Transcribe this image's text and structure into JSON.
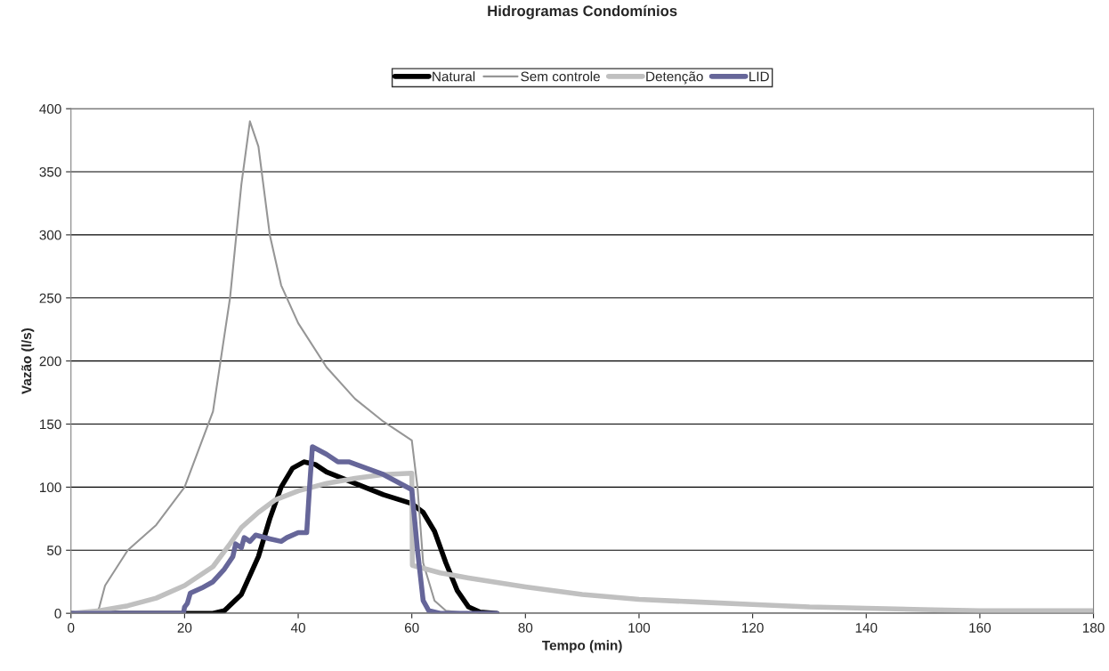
{
  "chart_data": {
    "type": "line",
    "title": "Hidrogramas Condomínios",
    "xlabel": "Tempo (min)",
    "ylabel": "Vazão (l/s)",
    "xlim": [
      0,
      180
    ],
    "xticks": [
      0,
      20,
      40,
      60,
      80,
      100,
      120,
      140,
      160,
      180
    ],
    "ylim": [
      0,
      400
    ],
    "yticks": [
      0,
      50,
      100,
      150,
      200,
      250,
      300,
      350,
      400
    ],
    "grid": "y",
    "legend": "top",
    "marker": "none",
    "series": [
      {
        "name": "Natural",
        "color": "#000000",
        "x": [
          0,
          25,
          27,
          30,
          33,
          35,
          37,
          39,
          41,
          43,
          45,
          50,
          55,
          60,
          62,
          64,
          66,
          68,
          70,
          72,
          75
        ],
        "values": [
          0,
          0,
          2,
          15,
          45,
          75,
          100,
          115,
          120,
          118,
          112,
          103,
          94,
          87,
          80,
          65,
          40,
          18,
          5,
          1,
          0
        ]
      },
      {
        "name": "Sem controle",
        "color": "#969696",
        "x": [
          0,
          4.5,
          5,
          6,
          10,
          15,
          20,
          25,
          28,
          30,
          31.5,
          33,
          35,
          37,
          40,
          45,
          50,
          55,
          60,
          61,
          62,
          64,
          66,
          70
        ],
        "values": [
          0,
          0,
          5,
          22,
          50,
          70,
          100,
          160,
          250,
          340,
          390,
          370,
          300,
          260,
          230,
          195,
          170,
          152,
          137,
          100,
          40,
          10,
          2,
          0
        ]
      },
      {
        "name": "Detenção",
        "color": "#c0c0c0",
        "x": [
          0,
          5,
          10,
          15,
          20,
          25,
          28,
          30,
          33,
          36,
          40,
          45,
          50,
          55,
          60,
          60.1,
          65,
          70,
          80,
          90,
          100,
          110,
          120,
          130,
          140,
          150,
          160,
          170,
          180
        ],
        "values": [
          0,
          2,
          6,
          12,
          22,
          37,
          55,
          68,
          80,
          90,
          97,
          103,
          107,
          110,
          111,
          38,
          32,
          28,
          21,
          15,
          11,
          9,
          7,
          5,
          4,
          3,
          2,
          2,
          2
        ]
      },
      {
        "name": "LID",
        "color": "#666699",
        "x": [
          0,
          19.8,
          20,
          20.5,
          21,
          23,
          25,
          27,
          28.5,
          29,
          30,
          30.5,
          31.5,
          32.5,
          35,
          37,
          38,
          40,
          41.5,
          42,
          42.5,
          45,
          47,
          49,
          55,
          60,
          61,
          62,
          63,
          65,
          75
        ],
        "values": [
          0,
          0,
          5,
          8,
          16,
          20,
          25,
          35,
          45,
          55,
          52,
          60,
          57,
          62,
          59,
          57,
          60,
          64,
          64,
          100,
          132,
          126,
          120,
          120,
          110,
          98,
          50,
          10,
          2,
          0,
          0
        ]
      }
    ]
  }
}
